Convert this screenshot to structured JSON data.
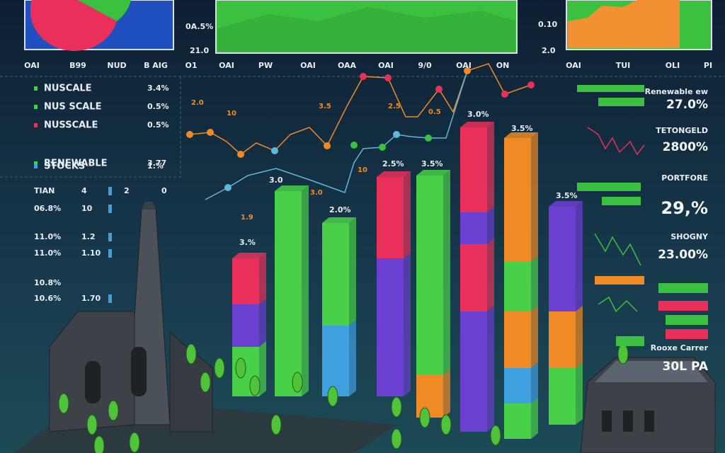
{
  "top_axis": {
    "labels": [
      "OAI",
      "B99",
      "NUD",
      "B AIG",
      "O1",
      "OAI",
      "PW",
      "OAI",
      "OAA",
      "OAI",
      "9/0",
      "OAI",
      "ON",
      "OAI",
      "TUI",
      "OLI",
      "PI"
    ],
    "left_ticks": [
      "0A.5%",
      "21.0"
    ],
    "right_ticks": [
      "0.10",
      "2.0"
    ]
  },
  "legend": [
    {
      "name": "NUSCALE",
      "value": "3.4%"
    },
    {
      "name": "NUS SCALE",
      "value": "0.5%"
    },
    {
      "name": "NUSSCALE",
      "value": "0.5%"
    },
    {
      "name": "RENEWABLE",
      "value": "3.77"
    },
    {
      "name": "STOCKS",
      "value": "1.%"
    }
  ],
  "left_table": {
    "rows": [
      [
        "TIAN",
        "4",
        "2",
        "0"
      ],
      [
        "06.8%",
        "10"
      ],
      [
        "11.0%",
        "1.2"
      ],
      [
        "11.0%",
        "1.10"
      ],
      [
        "10.8%"
      ],
      [
        "10.6%",
        "1.70"
      ]
    ]
  },
  "line_labels": [
    "2.0",
    "10",
    "3.5",
    "2.5",
    "0.5",
    "10",
    "3.0",
    "1.9"
  ],
  "bar_labels": [
    "3.%",
    "3.0",
    "2.0%",
    "2.5%",
    "3.5%",
    "3.0%",
    "3.5%",
    "3.5%"
  ],
  "right_panel": [
    {
      "label": "Renewable ew",
      "value": "27.0%"
    },
    {
      "label": "TETONGELD",
      "value": "2800%"
    },
    {
      "label": "PORTFORE",
      "value": "29,%"
    },
    {
      "label": "SHOGNY",
      "value": "23.00%"
    },
    {
      "label": "Rooxe Carrer",
      "value": "30L PA"
    }
  ]
}
